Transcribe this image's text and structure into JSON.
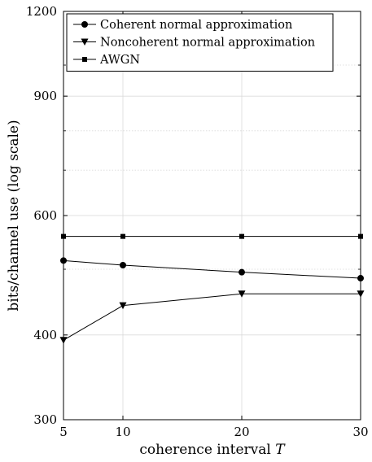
{
  "chart_data": {
    "type": "line",
    "title": "",
    "xlabel": "coherence interval",
    "xlabel_var": "T",
    "ylabel": "bits/channel use (log scale)",
    "x": [
      5,
      10,
      20,
      30
    ],
    "xlim": [
      5,
      30
    ],
    "ylim": [
      300,
      1200
    ],
    "yscale": "log",
    "xticks": [
      5,
      10,
      20,
      30
    ],
    "yticks": [
      300,
      400,
      600,
      900,
      1200
    ],
    "grid": true,
    "legend_position": "top-left",
    "series": [
      {
        "name": "Coherent normal approximation",
        "marker": "circle",
        "values": [
          515,
          507,
          495,
          485
        ]
      },
      {
        "name": "Noncoherent normal approximation",
        "marker": "triangle-down",
        "values": [
          393,
          442,
          460,
          460
        ]
      },
      {
        "name": "AWGN",
        "marker": "square",
        "values": [
          559,
          559,
          559,
          559
        ]
      }
    ],
    "colors": {
      "lines": "#000000",
      "grid": "#d9d9d9",
      "background": "#ffffff"
    }
  }
}
